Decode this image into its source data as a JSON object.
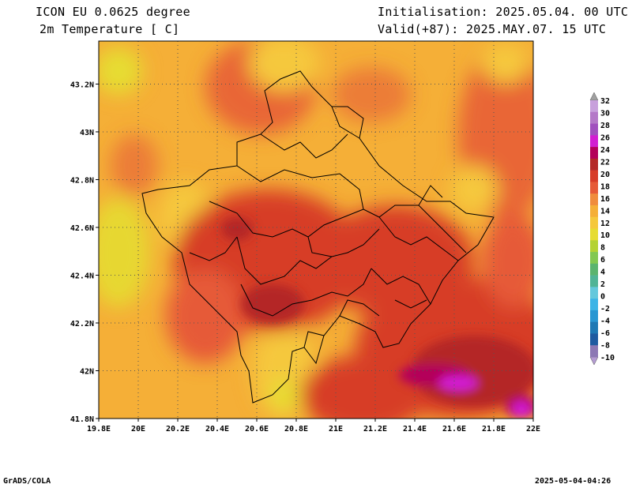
{
  "header": {
    "model": "ICON EU 0.0625 degree",
    "variable": "2m Temperature [ C]",
    "init": "Initialisation: 2025.05.04. 00 UTC",
    "valid": "Valid(+87): 2025.MAY.07. 15 UTC"
  },
  "axes": {
    "lat_labels": [
      "43.2N",
      "43N",
      "42.8N",
      "42.6N",
      "42.4N",
      "42.2N",
      "42N",
      "41.8N"
    ],
    "lon_labels": [
      "19.8E",
      "20E",
      "20.2E",
      "20.4E",
      "20.6E",
      "20.8E",
      "21E",
      "21.2E",
      "21.4E",
      "21.6E",
      "21.8E",
      "22E"
    ],
    "lat_values": [
      43.2,
      43.0,
      42.8,
      42.6,
      42.4,
      42.2,
      42.0,
      41.8
    ],
    "lon_values": [
      19.8,
      20.0,
      20.2,
      20.4,
      20.6,
      20.8,
      21.0,
      21.2,
      21.4,
      21.6,
      21.8,
      22.0
    ],
    "lat_range": [
      41.8,
      43.38
    ],
    "lon_range": [
      19.8,
      22.0
    ]
  },
  "colorbar": {
    "labels": [
      "32",
      "30",
      "28",
      "26",
      "24",
      "22",
      "20",
      "18",
      "16",
      "14",
      "12",
      "10",
      "8",
      "6",
      "4",
      "2",
      "0",
      "-2",
      "-4",
      "-6",
      "-8",
      "-10"
    ],
    "colors": [
      "#c8a0dc",
      "#b478c8",
      "#a050be",
      "#d21ed2",
      "#b4005a",
      "#b42828",
      "#d73c28",
      "#e65a37",
      "#f08c3c",
      "#f5af37",
      "#f5c83c",
      "#e6dc32",
      "#b4d232",
      "#82c850",
      "#5ab46e",
      "#50b496",
      "#64c8dc",
      "#3cb4e6",
      "#2896d2",
      "#1e78b4",
      "#1e5aa0",
      "#8c78b4"
    ]
  },
  "footer": {
    "left": "GrADS/COLA",
    "right": "2025-05-04-04:26"
  }
}
